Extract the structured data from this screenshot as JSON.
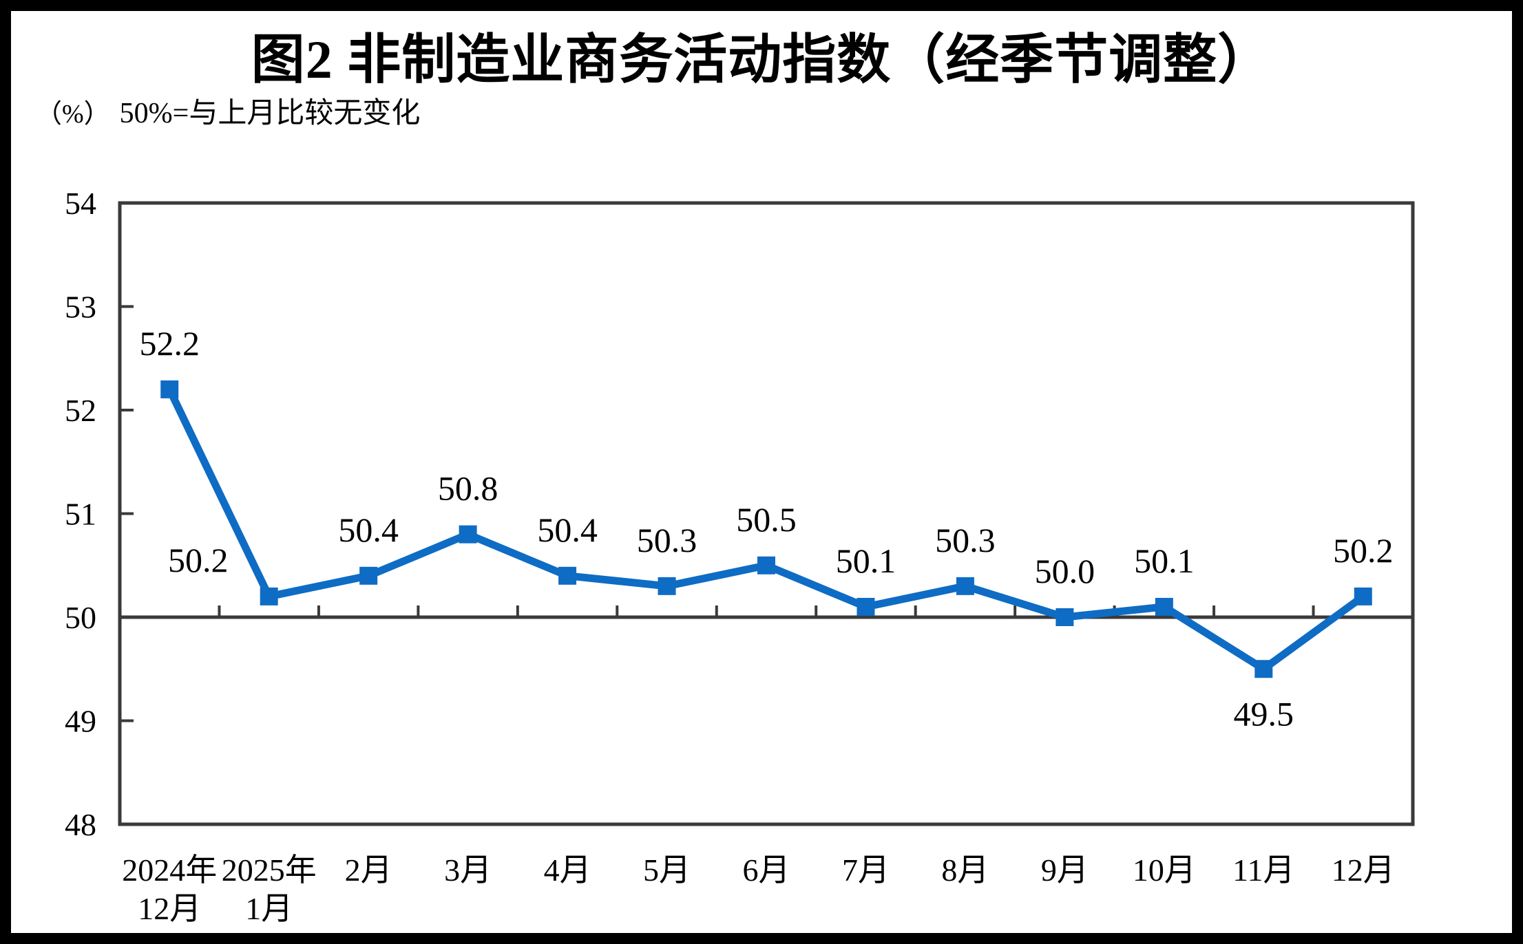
{
  "header": {
    "title": "图2 非制造业商务活动指数（经季节调整）",
    "unit_note": "（%）",
    "subtitle": "50%=与上月比较无变化"
  },
  "chart_data": {
    "type": "line",
    "title": "图2 非制造业商务活动指数（经季节调整）",
    "unit_note": "（%）",
    "subtitle": "50%=与上月比较无变化",
    "categories": [
      [
        "2024年",
        "12月"
      ],
      [
        "2025年",
        "1月"
      ],
      [
        "2月"
      ],
      [
        "3月"
      ],
      [
        "4月"
      ],
      [
        "5月"
      ],
      [
        "6月"
      ],
      [
        "7月"
      ],
      [
        "8月"
      ],
      [
        "9月"
      ],
      [
        "10月"
      ],
      [
        "11月"
      ],
      [
        "12月"
      ]
    ],
    "values": [
      52.2,
      50.2,
      50.4,
      50.8,
      50.4,
      50.3,
      50.5,
      50.1,
      50.3,
      50.0,
      50.1,
      49.5,
      50.2
    ],
    "data_labels": [
      "52.2",
      "50.2",
      "50.4",
      "50.8",
      "50.4",
      "50.3",
      "50.5",
      "50.1",
      "50.3",
      "50.0",
      "50.1",
      "49.5",
      "50.2"
    ],
    "label_positions": [
      "above",
      "above-left",
      "above",
      "above",
      "above",
      "above",
      "above",
      "above",
      "above",
      "above",
      "above",
      "below",
      "above"
    ],
    "yticks": [
      48,
      49,
      50,
      51,
      52,
      53,
      54
    ],
    "ylim": [
      48,
      54
    ],
    "baseline_value": 50,
    "grid": "off",
    "legend": "none",
    "marker": "square",
    "line_color": "#0E6CC4",
    "axis_color": "#3A3A3A",
    "text_color": "#000000"
  }
}
